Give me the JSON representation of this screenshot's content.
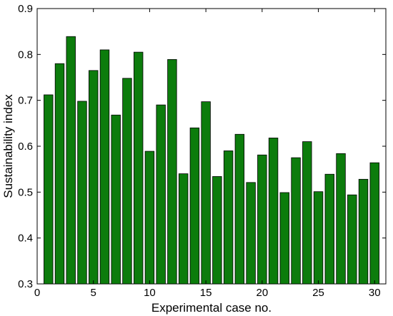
{
  "chart_data": {
    "type": "bar",
    "xlabel": "Experimental case no.",
    "ylabel": "Sustainability index",
    "xlim": [
      0,
      31
    ],
    "ylim": [
      0.3,
      0.9
    ],
    "xticks": [
      0,
      5,
      10,
      15,
      20,
      25,
      30
    ],
    "yticks": [
      0.3,
      0.4,
      0.5,
      0.6,
      0.7,
      0.8,
      0.9
    ],
    "categories": [
      1,
      2,
      3,
      4,
      5,
      6,
      7,
      8,
      9,
      10,
      11,
      12,
      13,
      14,
      15,
      16,
      17,
      18,
      19,
      20,
      21,
      22,
      23,
      24,
      25,
      26,
      27,
      28,
      29,
      30
    ],
    "values": [
      0.712,
      0.78,
      0.839,
      0.698,
      0.765,
      0.81,
      0.668,
      0.748,
      0.805,
      0.589,
      0.69,
      0.789,
      0.54,
      0.64,
      0.697,
      0.534,
      0.59,
      0.626,
      0.521,
      0.581,
      0.618,
      0.499,
      0.575,
      0.61,
      0.501,
      0.539,
      0.584,
      0.494,
      0.528,
      0.564
    ],
    "grid": false,
    "bar_color": "#0c7c0c"
  }
}
